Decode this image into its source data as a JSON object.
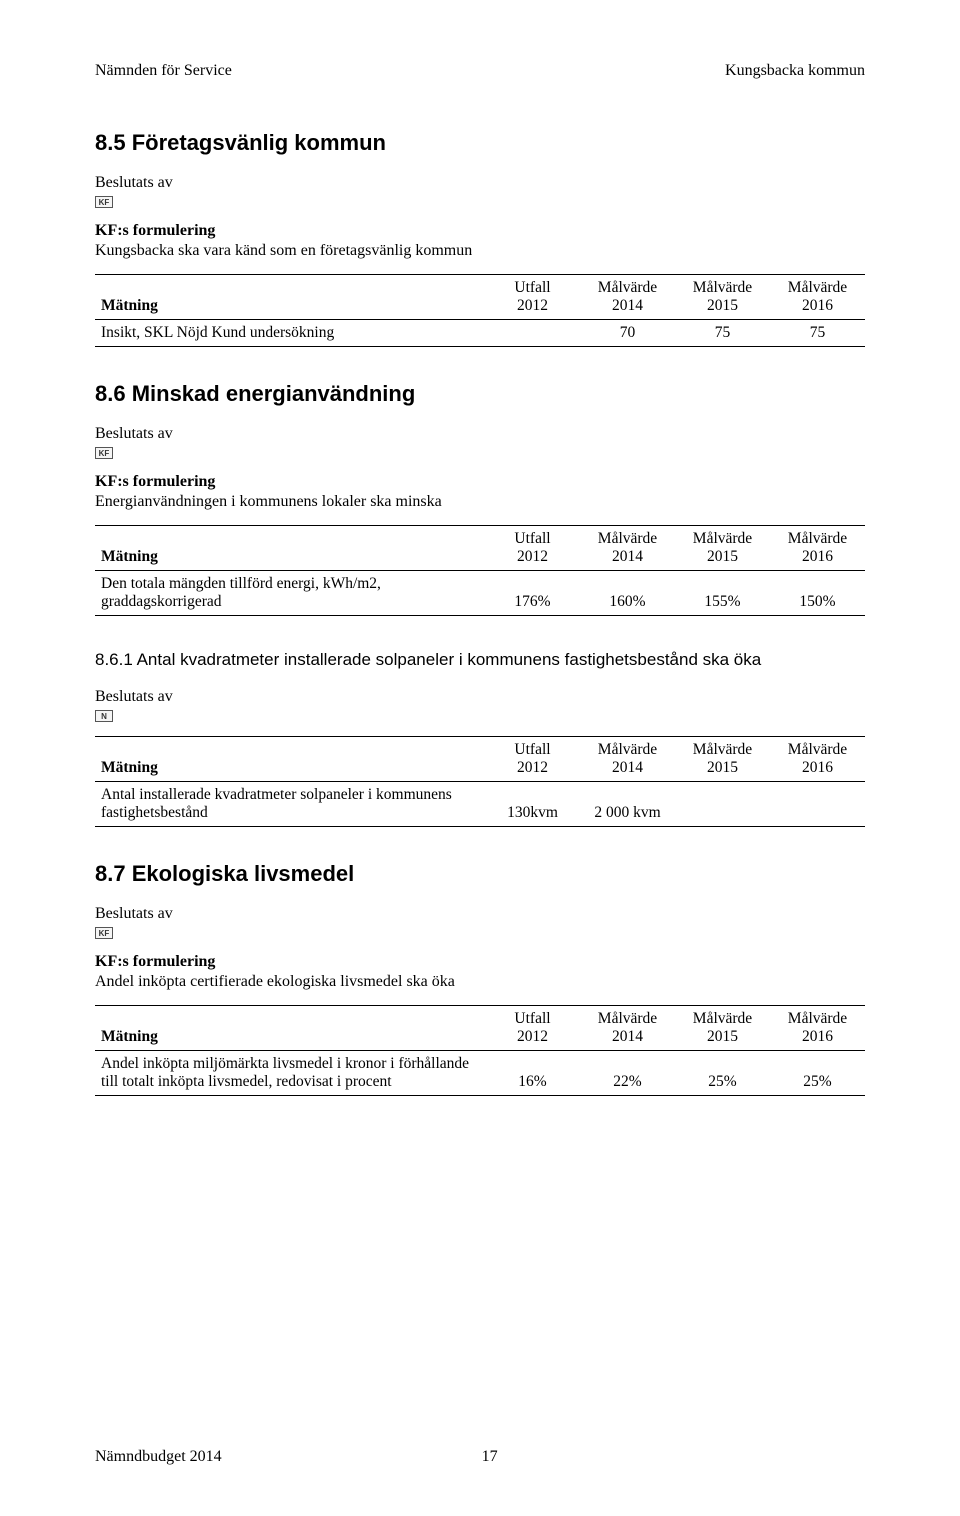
{
  "header": {
    "left": "Nämnden för Service",
    "right": "Kungsbacka kommun"
  },
  "sections": {
    "s85": {
      "heading": "8.5 Företagsvänlig kommun",
      "beslutats": "Beslutats av",
      "icon_text": "KF",
      "kf_label": "KF:s formulering",
      "kf_text": "Kungsbacka ska vara känd som en företagsvänlig kommun",
      "table": {
        "head_metric": "Mätning",
        "head_c1a": "Utfall",
        "head_c1b": "2012",
        "head_c2a": "Målvärde",
        "head_c2b": "2014",
        "head_c3a": "Målvärde",
        "head_c3b": "2015",
        "head_c4a": "Målvärde",
        "head_c4b": "2016",
        "row1_metric": "Insikt, SKL Nöjd Kund undersökning",
        "row1_c1": "",
        "row1_c2": "70",
        "row1_c3": "75",
        "row1_c4": "75"
      }
    },
    "s86": {
      "heading": "8.6 Minskad energianvändning",
      "beslutats": "Beslutats av",
      "icon_text": "KF",
      "kf_label": "KF:s formulering",
      "kf_text": "Energianvändningen i kommunens lokaler ska minska",
      "table": {
        "head_metric": "Mätning",
        "head_c1a": "Utfall",
        "head_c1b": "2012",
        "head_c2a": "Målvärde",
        "head_c2b": "2014",
        "head_c3a": "Målvärde",
        "head_c3b": "2015",
        "head_c4a": "Målvärde",
        "head_c4b": "2016",
        "row1_metric": "Den totala mängden tillförd energi, kWh/m2, graddagskorrigerad",
        "row1_c1": "176%",
        "row1_c2": "160%",
        "row1_c3": "155%",
        "row1_c4": "150%"
      }
    },
    "s861": {
      "heading": "8.6.1    Antal kvadratmeter installerade solpaneler i kommunens fastighetsbestånd ska öka",
      "beslutats": "Beslutats av",
      "icon_text": "N",
      "table": {
        "head_metric": "Mätning",
        "head_c1a": "Utfall",
        "head_c1b": "2012",
        "head_c2a": "Målvärde",
        "head_c2b": "2014",
        "head_c3a": "Målvärde",
        "head_c3b": "2015",
        "head_c4a": "Målvärde",
        "head_c4b": "2016",
        "row1_metric": "Antal installerade kvadratmeter solpaneler i kommunens fastighetsbestånd",
        "row1_c1": "130kvm",
        "row1_c2": "2 000 kvm",
        "row1_c3": "",
        "row1_c4": ""
      }
    },
    "s87": {
      "heading": "8.7 Ekologiska livsmedel",
      "beslutats": "Beslutats av",
      "icon_text": "KF",
      "kf_label": "KF:s formulering",
      "kf_text": "Andel inköpta certifierade ekologiska livsmedel ska öka",
      "table": {
        "head_metric": "Mätning",
        "head_c1a": "Utfall",
        "head_c1b": "2012",
        "head_c2a": "Målvärde",
        "head_c2b": "2014",
        "head_c3a": "Målvärde",
        "head_c3b": "2015",
        "head_c4a": "Målvärde",
        "head_c4b": "2016",
        "row1_metric": "Andel inköpta miljömärkta livsmedel i kronor i förhållande till totalt inköpta livsmedel, redovisat i procent",
        "row1_c1": "16%",
        "row1_c2": "22%",
        "row1_c3": "25%",
        "row1_c4": "25%"
      }
    }
  },
  "footer": {
    "title": "Nämndbudget 2014",
    "page": "17"
  }
}
